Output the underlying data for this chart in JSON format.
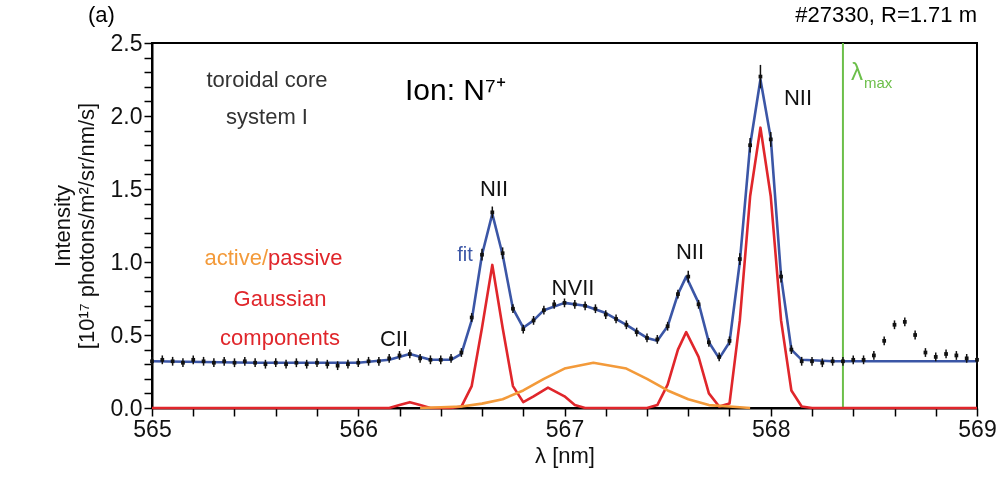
{
  "chart_data": {
    "type": "line",
    "title": "(a)",
    "xlabel": "λ [nm]",
    "ylabel": "Intensity\n[10¹⁷ photons/m²/sr/nm/s]",
    "xlim": [
      565,
      569
    ],
    "ylim": [
      0,
      2.5
    ],
    "xticks": [
      565,
      {
        "value": 565.2,
        "label": null
      },
      {
        "value": 565.4,
        "label": null
      },
      {
        "value": 565.6,
        "label": null
      },
      {
        "value": 565.8,
        "label": null
      },
      566,
      {
        "value": 566.2,
        "label": null
      },
      {
        "value": 566.4,
        "label": null
      },
      {
        "value": 566.6,
        "label": null
      },
      {
        "value": 566.8,
        "label": null
      },
      567,
      {
        "value": 567.2,
        "label": null
      },
      {
        "value": 567.4,
        "label": null
      },
      {
        "value": 567.6,
        "label": null
      },
      {
        "value": 567.8,
        "label": null
      },
      568,
      {
        "value": 568.2,
        "label": null
      },
      {
        "value": 568.4,
        "label": null
      },
      {
        "value": 568.6,
        "label": null
      },
      {
        "value": 568.8,
        "label": null
      },
      569
    ],
    "yticks": [
      {
        "value": 0,
        "label": "0.0"
      },
      {
        "value": 0.1,
        "label": null
      },
      {
        "value": 0.2,
        "label": null
      },
      {
        "value": 0.3,
        "label": null
      },
      {
        "value": 0.4,
        "label": null
      },
      {
        "value": 0.5,
        "label": "0.5"
      },
      {
        "value": 0.6,
        "label": null
      },
      {
        "value": 0.7,
        "label": null
      },
      {
        "value": 0.8,
        "label": null
      },
      {
        "value": 0.9,
        "label": null
      },
      {
        "value": 1,
        "label": "1.0"
      },
      {
        "value": 1.1,
        "label": null
      },
      {
        "value": 1.2,
        "label": null
      },
      {
        "value": 1.3,
        "label": null
      },
      {
        "value": 1.4,
        "label": null
      },
      {
        "value": 1.5,
        "label": "1.5"
      },
      {
        "value": 1.6,
        "label": null
      },
      {
        "value": 1.7,
        "label": null
      },
      {
        "value": 1.8,
        "label": null
      },
      {
        "value": 1.9,
        "label": null
      },
      {
        "value": 2,
        "label": "2.0"
      },
      {
        "value": 2.1,
        "label": null
      },
      {
        "value": 2.2,
        "label": null
      },
      {
        "value": 2.3,
        "label": null
      },
      {
        "value": 2.4,
        "label": null
      },
      {
        "value": 2.5,
        "label": "2.5"
      }
    ],
    "grid": false,
    "legend": false,
    "series": [
      {
        "type": "scatter",
        "marker": "square",
        "color": "#111111",
        "x": [
          565.0,
          565.05,
          565.1,
          565.15,
          565.2,
          565.25,
          565.3,
          565.35,
          565.4,
          565.45,
          565.5,
          565.55,
          565.6,
          565.65,
          565.7,
          565.75,
          565.8,
          565.85,
          565.9,
          565.95,
          566.0,
          566.05,
          566.1,
          566.15,
          566.2,
          566.25,
          566.3,
          566.35,
          566.4,
          566.45,
          566.5,
          566.55,
          566.6,
          566.65,
          566.7,
          566.75,
          566.8,
          566.85,
          566.9,
          566.95,
          567.0,
          567.05,
          567.1,
          567.15,
          567.2,
          567.25,
          567.3,
          567.35,
          567.4,
          567.45,
          567.5,
          567.55,
          567.6,
          567.65,
          567.7,
          567.75,
          567.8,
          567.85,
          567.9,
          567.95,
          568.0,
          568.05,
          568.1,
          568.15,
          568.2,
          568.25,
          568.3,
          568.35,
          568.4,
          568.45,
          568.5,
          568.55,
          568.6,
          568.65,
          568.7,
          568.75,
          568.8,
          568.85,
          568.9,
          568.95,
          569.0
        ],
        "values": [
          0.32,
          0.33,
          0.32,
          0.31,
          0.33,
          0.32,
          0.31,
          0.32,
          0.31,
          0.32,
          0.31,
          0.3,
          0.31,
          0.3,
          0.31,
          0.3,
          0.31,
          0.3,
          0.29,
          0.3,
          0.31,
          0.32,
          0.32,
          0.34,
          0.36,
          0.37,
          0.34,
          0.33,
          0.33,
          0.34,
          0.38,
          0.62,
          1.05,
          1.34,
          1.06,
          0.68,
          0.54,
          0.6,
          0.67,
          0.71,
          0.72,
          0.71,
          0.7,
          0.68,
          0.64,
          0.61,
          0.57,
          0.52,
          0.48,
          0.47,
          0.56,
          0.78,
          0.9,
          0.71,
          0.45,
          0.35,
          0.46,
          1.02,
          1.8,
          2.27,
          1.84,
          0.9,
          0.4,
          0.32,
          0.32,
          0.31,
          0.32,
          0.32,
          0.33,
          0.33,
          0.36,
          0.46,
          0.57,
          0.59,
          0.5,
          0.38,
          0.35,
          0.37,
          0.36,
          0.34,
          0.33
        ],
        "errors": [
          0.03,
          0.03,
          0.03,
          0.03,
          0.03,
          0.03,
          0.03,
          0.03,
          0.03,
          0.03,
          0.03,
          0.03,
          0.03,
          0.03,
          0.03,
          0.03,
          0.03,
          0.03,
          0.03,
          0.03,
          0.03,
          0.03,
          0.03,
          0.03,
          0.03,
          0.03,
          0.03,
          0.03,
          0.03,
          0.03,
          0.03,
          0.03,
          0.04,
          0.04,
          0.04,
          0.03,
          0.03,
          0.03,
          0.03,
          0.03,
          0.03,
          0.03,
          0.03,
          0.03,
          0.03,
          0.03,
          0.03,
          0.03,
          0.03,
          0.03,
          0.03,
          0.03,
          0.04,
          0.03,
          0.03,
          0.03,
          0.03,
          0.04,
          0.05,
          0.08,
          0.05,
          0.04,
          0.03,
          0.03,
          0.03,
          0.03,
          0.03,
          0.03,
          0.03,
          0.03,
          0.03,
          0.03,
          0.03,
          0.03,
          0.03,
          0.03,
          0.03,
          0.03,
          0.03,
          0.03,
          0.03
        ]
      },
      {
        "name": "fit",
        "color": "#3b56a6",
        "x": [
          565.0,
          565.5,
          566.0,
          566.15,
          566.25,
          566.35,
          566.45,
          566.5,
          566.55,
          566.6,
          566.65,
          566.7,
          566.75,
          566.8,
          566.85,
          566.9,
          567.0,
          567.1,
          567.2,
          567.3,
          567.4,
          567.45,
          567.5,
          567.55,
          567.59,
          567.65,
          567.7,
          567.75,
          567.8,
          567.85,
          567.9,
          567.95,
          568.0,
          568.05,
          568.1,
          568.15,
          568.3,
          568.35,
          569.0
        ],
        "values": [
          0.32,
          0.31,
          0.31,
          0.33,
          0.37,
          0.33,
          0.33,
          0.37,
          0.6,
          1.05,
          1.33,
          1.05,
          0.68,
          0.55,
          0.6,
          0.67,
          0.72,
          0.7,
          0.65,
          0.57,
          0.48,
          0.46,
          0.56,
          0.78,
          0.9,
          0.72,
          0.45,
          0.34,
          0.45,
          1.0,
          1.8,
          2.25,
          1.85,
          0.9,
          0.4,
          0.33,
          0.32,
          0.32,
          0.32
        ]
      },
      {
        "color": "#e0262b",
        "x": [
          565.0,
          566.15,
          566.2,
          566.25,
          566.3,
          566.35,
          566.45,
          566.5,
          566.55,
          566.6,
          566.65,
          566.7,
          566.75,
          566.8,
          566.85,
          566.92,
          567.0,
          567.05,
          567.1,
          567.4,
          567.45,
          567.5,
          567.55,
          567.59,
          567.65,
          567.7,
          567.75,
          567.8,
          567.85,
          567.9,
          567.95,
          568.0,
          568.05,
          568.1,
          568.15,
          568.2,
          569.0
        ],
        "values": [
          0,
          0,
          0.02,
          0.04,
          0.02,
          0,
          0,
          0.01,
          0.15,
          0.55,
          0.98,
          0.55,
          0.15,
          0.04,
          0.08,
          0.14,
          0.08,
          0.02,
          0,
          0,
          0.02,
          0.16,
          0.4,
          0.52,
          0.35,
          0.1,
          0.01,
          0.03,
          0.6,
          1.45,
          1.92,
          1.45,
          0.6,
          0.12,
          0.01,
          0,
          0
        ]
      },
      {
        "color": "#f39a3a",
        "x": [
          566.3,
          566.5,
          566.6,
          566.7,
          566.8,
          566.9,
          567.0,
          567.14,
          567.3,
          567.4,
          567.5,
          567.6,
          567.7,
          567.8,
          567.9
        ],
        "values": [
          0,
          0.01,
          0.03,
          0.06,
          0.12,
          0.2,
          0.27,
          0.31,
          0.27,
          0.2,
          0.12,
          0.06,
          0.02,
          0.01,
          0
        ]
      }
    ],
    "ref_lines": [
      {
        "axis": "x",
        "value": 568.35,
        "label": "λ$_{max}$",
        "color": "#6cbf4a"
      }
    ],
    "annotations": [
      "toroidal core\nsystem I",
      "Ion: N⁷⁺",
      "#27330, R=1.71 m",
      "active/passive\nGaussian\ncomponents",
      "CII",
      "NII",
      "NVII",
      "NII",
      "NII"
    ]
  }
}
